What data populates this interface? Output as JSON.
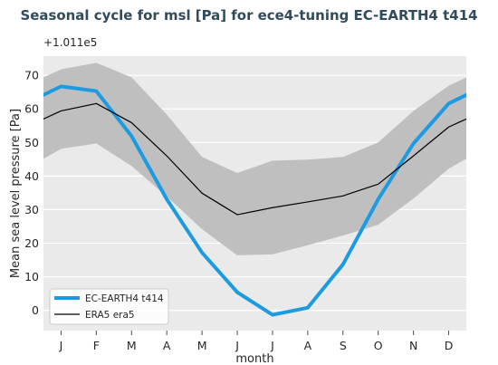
{
  "chart_data": {
    "type": "line",
    "title": "Seasonal cycle for msl [Pa] for ece4-tuning EC-EARTH4 t414",
    "offset_text": "+1.011e5",
    "xlabel": "month",
    "ylabel": "Mean sea level pressure [Pa]",
    "categories": [
      "J",
      "F",
      "M",
      "A",
      "M",
      "J",
      "J",
      "A",
      "S",
      "O",
      "N",
      "D"
    ],
    "xlim": [
      0.5,
      12.5
    ],
    "ylim": [
      -6,
      75.7
    ],
    "yticks": [
      0,
      10,
      20,
      30,
      40,
      50,
      60,
      70
    ],
    "grid": true,
    "legend": "lower left",
    "series": [
      {
        "name": "EC-EARTH4 t414",
        "color": "#1e9be0",
        "values": [
          66.7,
          65.3,
          51.9,
          33.1,
          17.2,
          5.4,
          -1.3,
          0.8,
          13.7,
          33.1,
          49.7,
          61.6
        ]
      },
      {
        "name": "ERA5 era5",
        "color": "#000000",
        "values": [
          59.4,
          61.6,
          55.9,
          46.0,
          34.9,
          28.5,
          30.6,
          32.3,
          34.1,
          37.6,
          46.0,
          54.6
        ]
      }
    ],
    "shaded_range": {
      "color": "#bfbfbf",
      "upper": [
        71.8,
        73.7,
        69.4,
        58.3,
        45.7,
        40.9,
        44.6,
        44.9,
        45.7,
        50.0,
        59.4,
        66.9
      ],
      "lower": [
        48.1,
        49.7,
        43.0,
        33.9,
        24.2,
        16.4,
        16.7,
        19.4,
        22.3,
        25.5,
        33.3,
        42.2
      ]
    },
    "colors": {
      "title": "#2f4b5c",
      "plot_background": "#eaeaea",
      "grid": "#ffffff",
      "tick": "#4d4d4d"
    }
  }
}
